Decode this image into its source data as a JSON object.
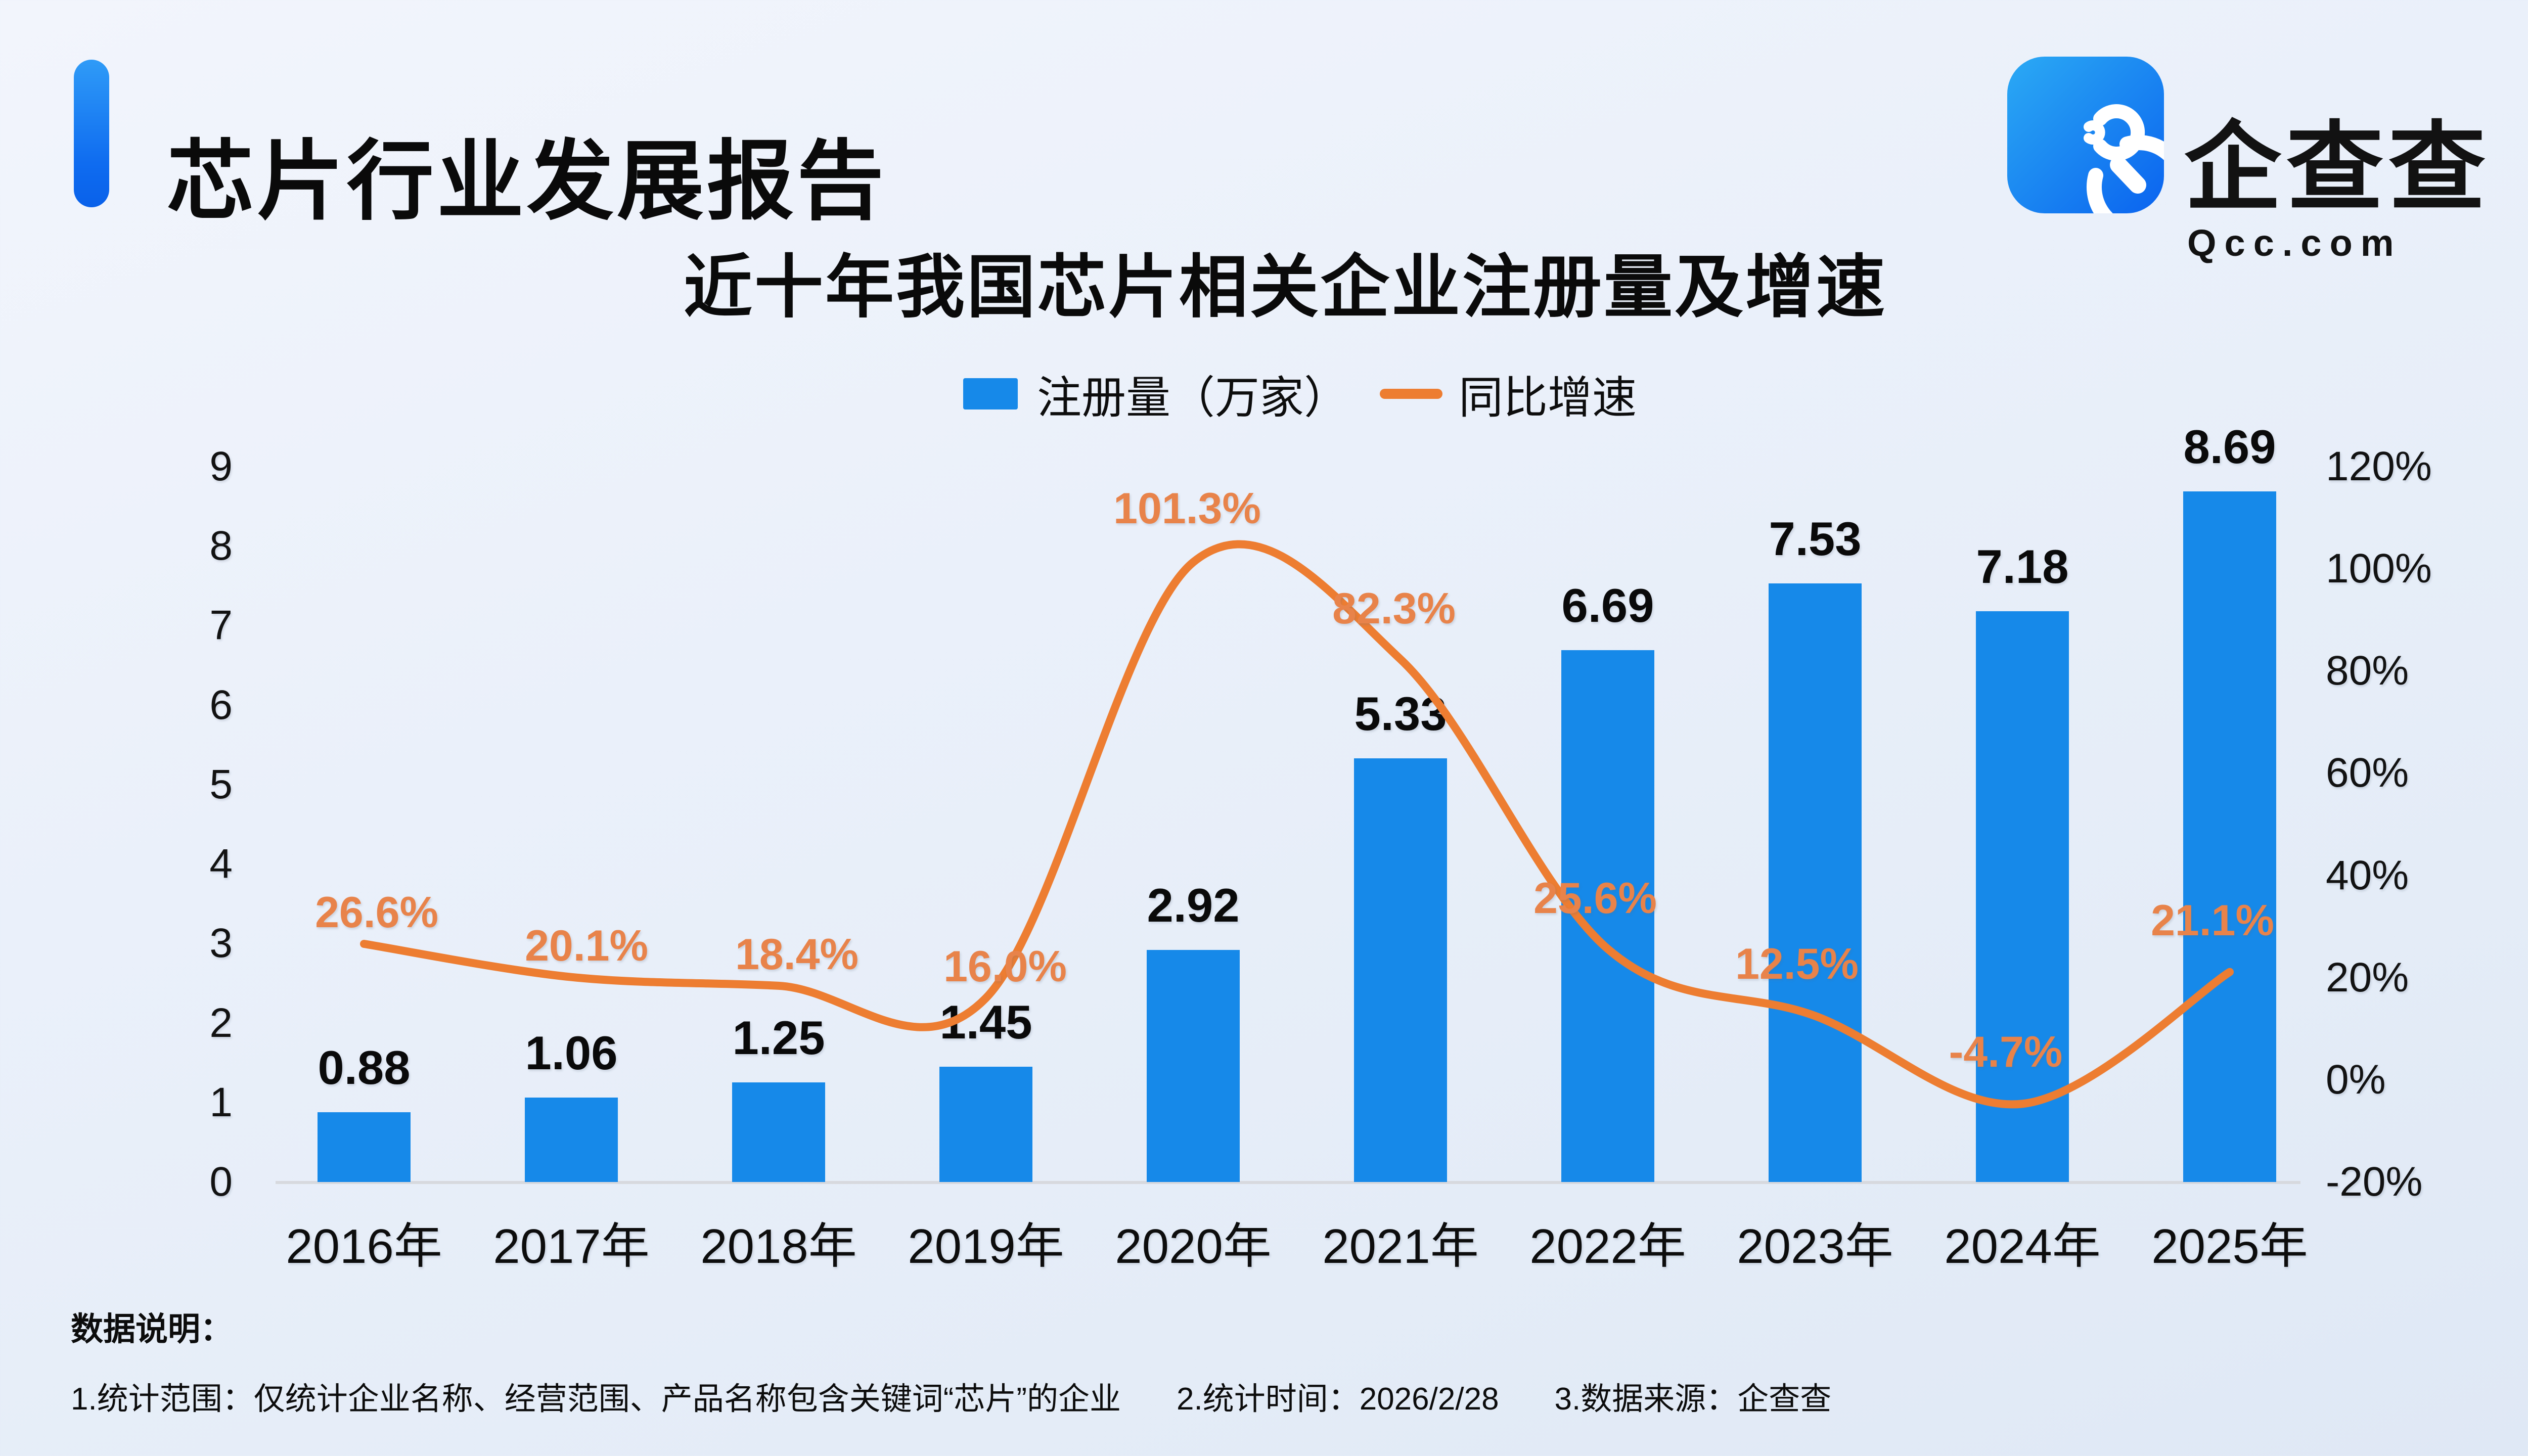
{
  "header": {
    "title": "芯片行业发展报告",
    "accent_color": "#1584F2",
    "logo": {
      "brand": "企查查",
      "domain": "Qcc.com"
    }
  },
  "chart": {
    "title": "近十年我国芯片相关企业注册量及增速",
    "legend": {
      "bar_label": "注册量（万家）",
      "line_label": "同比增速"
    }
  },
  "chart_data": {
    "type": "bar+line",
    "title": "近十年我国芯片相关企业注册量及增速",
    "categories": [
      "2016年",
      "2017年",
      "2018年",
      "2019年",
      "2020年",
      "2021年",
      "2022年",
      "2023年",
      "2024年",
      "2025年"
    ],
    "series": [
      {
        "name": "注册量（万家）",
        "type": "bar",
        "color": "#1689E9",
        "values": [
          0.88,
          1.06,
          1.25,
          1.45,
          2.92,
          5.33,
          6.69,
          7.53,
          7.18,
          8.69
        ]
      },
      {
        "name": "同比增速",
        "type": "line",
        "color": "#ED7D31",
        "label_color": "#E8834A",
        "values": [
          26.6,
          20.1,
          18.4,
          16.0,
          101.3,
          82.3,
          25.6,
          12.5,
          -4.7,
          21.1
        ]
      }
    ],
    "left_axis": {
      "min": 0,
      "max": 9,
      "step": 1,
      "ticks": [
        "0",
        "1",
        "2",
        "3",
        "4",
        "5",
        "6",
        "7",
        "8",
        "9"
      ]
    },
    "right_axis": {
      "min": -20,
      "max": 120,
      "step": 20,
      "ticks": [
        "-20%",
        "0%",
        "20%",
        "40%",
        "60%",
        "80%",
        "100%",
        "120%"
      ]
    },
    "grid": "off",
    "legend_position": "top",
    "colors": {
      "bar": "#1689E9",
      "line": "#ED7D31",
      "axis_line": "#d7d9de"
    }
  },
  "footer": {
    "heading": "数据说明：",
    "notes": [
      "1.统计范围：仅统计企业名称、经营范围、产品名称包含关键词“芯片”的企业",
      "2.统计时间：2026/2/28",
      "3.数据来源：企查查"
    ]
  }
}
